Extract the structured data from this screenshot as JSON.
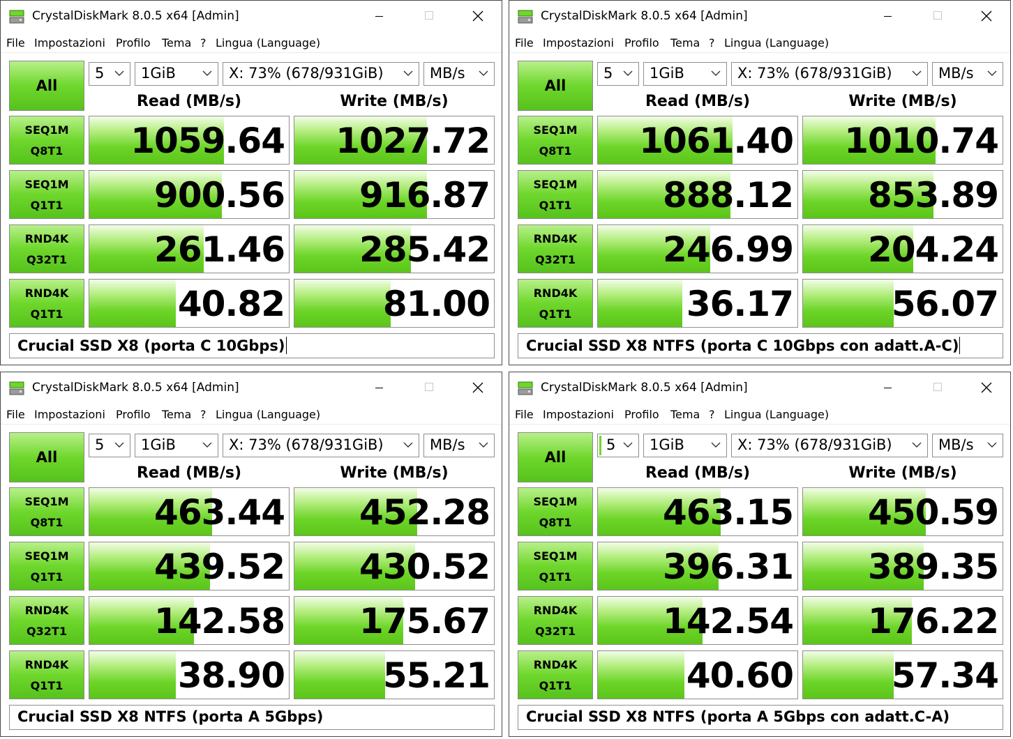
{
  "app": {
    "title": "CrystalDiskMark 8.0.5 x64 [Admin]",
    "menu": [
      "File",
      "Impostazioni",
      "Profilo",
      "Tema",
      "?",
      "Lingua (Language)"
    ],
    "all_label": "All",
    "count_value": "5",
    "size_value": "1GiB",
    "drive_value": "X: 73% (678/931GiB)",
    "unit_value": "MB/s",
    "read_header": "Read (MB/s)",
    "write_header": "Write (MB/s)",
    "tests": [
      {
        "line1": "SEQ1M",
        "line2": "Q8T1"
      },
      {
        "line1": "SEQ1M",
        "line2": "Q1T1"
      },
      {
        "line1": "RND4K",
        "line2": "Q32T1"
      },
      {
        "line1": "RND4K",
        "line2": "Q1T1"
      }
    ],
    "accent_color": "#6fd72c"
  },
  "windows": [
    {
      "comment": "Crucial SSD X8 (porta C 10Gbps)",
      "results": [
        {
          "read": "1059.64",
          "write": "1027.72",
          "read_fill": 0.67,
          "write_fill": 0.66
        },
        {
          "read": "900.56",
          "write": "916.87",
          "read_fill": 0.66,
          "write_fill": 0.66
        },
        {
          "read": "261.46",
          "write": "285.42",
          "read_fill": 0.57,
          "write_fill": 0.58
        },
        {
          "read": "40.82",
          "write": "81.00",
          "read_fill": 0.43,
          "write_fill": 0.48
        }
      ]
    },
    {
      "comment": "Crucial SSD X8 NTFS (porta C 10Gbps con adatt.A-C)",
      "results": [
        {
          "read": "1061.40",
          "write": "1010.74",
          "read_fill": 0.67,
          "write_fill": 0.66
        },
        {
          "read": "888.12",
          "write": "853.89",
          "read_fill": 0.66,
          "write_fill": 0.65
        },
        {
          "read": "246.99",
          "write": "204.24",
          "read_fill": 0.56,
          "write_fill": 0.55
        },
        {
          "read": "36.17",
          "write": "56.07",
          "read_fill": 0.42,
          "write_fill": 0.45
        }
      ]
    },
    {
      "comment": "Crucial SSD X8 NTFS (porta A 5Gbps)",
      "results": [
        {
          "read": "463.44",
          "write": "452.28",
          "read_fill": 0.61,
          "write_fill": 0.61
        },
        {
          "read": "439.52",
          "write": "430.52",
          "read_fill": 0.6,
          "write_fill": 0.6
        },
        {
          "read": "142.58",
          "write": "175.67",
          "read_fill": 0.52,
          "write_fill": 0.54
        },
        {
          "read": "38.90",
          "write": "55.21",
          "read_fill": 0.43,
          "write_fill": 0.45
        }
      ]
    },
    {
      "comment": "Crucial SSD X8 NTFS (porta A 5Gbps con adatt.C-A)",
      "results": [
        {
          "read": "463.15",
          "write": "450.59",
          "read_fill": 0.61,
          "write_fill": 0.61
        },
        {
          "read": "396.31",
          "write": "389.35",
          "read_fill": 0.6,
          "write_fill": 0.6
        },
        {
          "read": "142.54",
          "write": "176.22",
          "read_fill": 0.52,
          "write_fill": 0.54
        },
        {
          "read": "40.60",
          "write": "57.34",
          "read_fill": 0.43,
          "write_fill": 0.45
        }
      ]
    }
  ]
}
